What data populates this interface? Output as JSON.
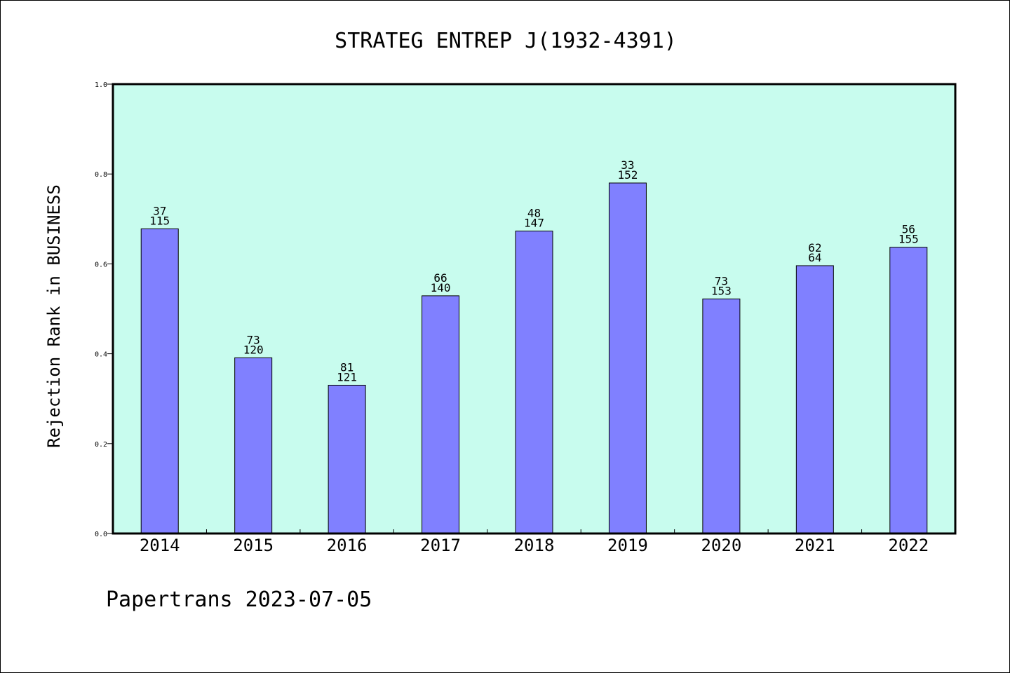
{
  "chart_data": {
    "type": "bar",
    "title": "STRATEG ENTREP J(1932-4391)",
    "ylabel": "Rejection Rank in BUSINESS",
    "xlabel": "",
    "ylim": [
      0,
      1.0
    ],
    "yticks": [
      "0.0",
      "0.2",
      "0.4",
      "0.6",
      "0.8",
      "1.0"
    ],
    "categories": [
      "2014",
      "2015",
      "2016",
      "2017",
      "2018",
      "2019",
      "2020",
      "2021",
      "2022"
    ],
    "values": [
      0.678,
      0.391,
      0.33,
      0.529,
      0.673,
      0.78,
      0.522,
      0.596,
      0.637
    ],
    "labels_top": [
      "37",
      "73",
      "81",
      "66",
      "48",
      "33",
      "73",
      "62",
      "56"
    ],
    "labels_bottom": [
      "115",
      "120",
      "121",
      "140",
      "147",
      "152",
      "153",
      "64",
      "155"
    ],
    "grid": false,
    "colors": {
      "plot_bg": "#c8fcee",
      "bar": "#8080ff"
    }
  },
  "footer": "Papertrans 2023-07-05"
}
